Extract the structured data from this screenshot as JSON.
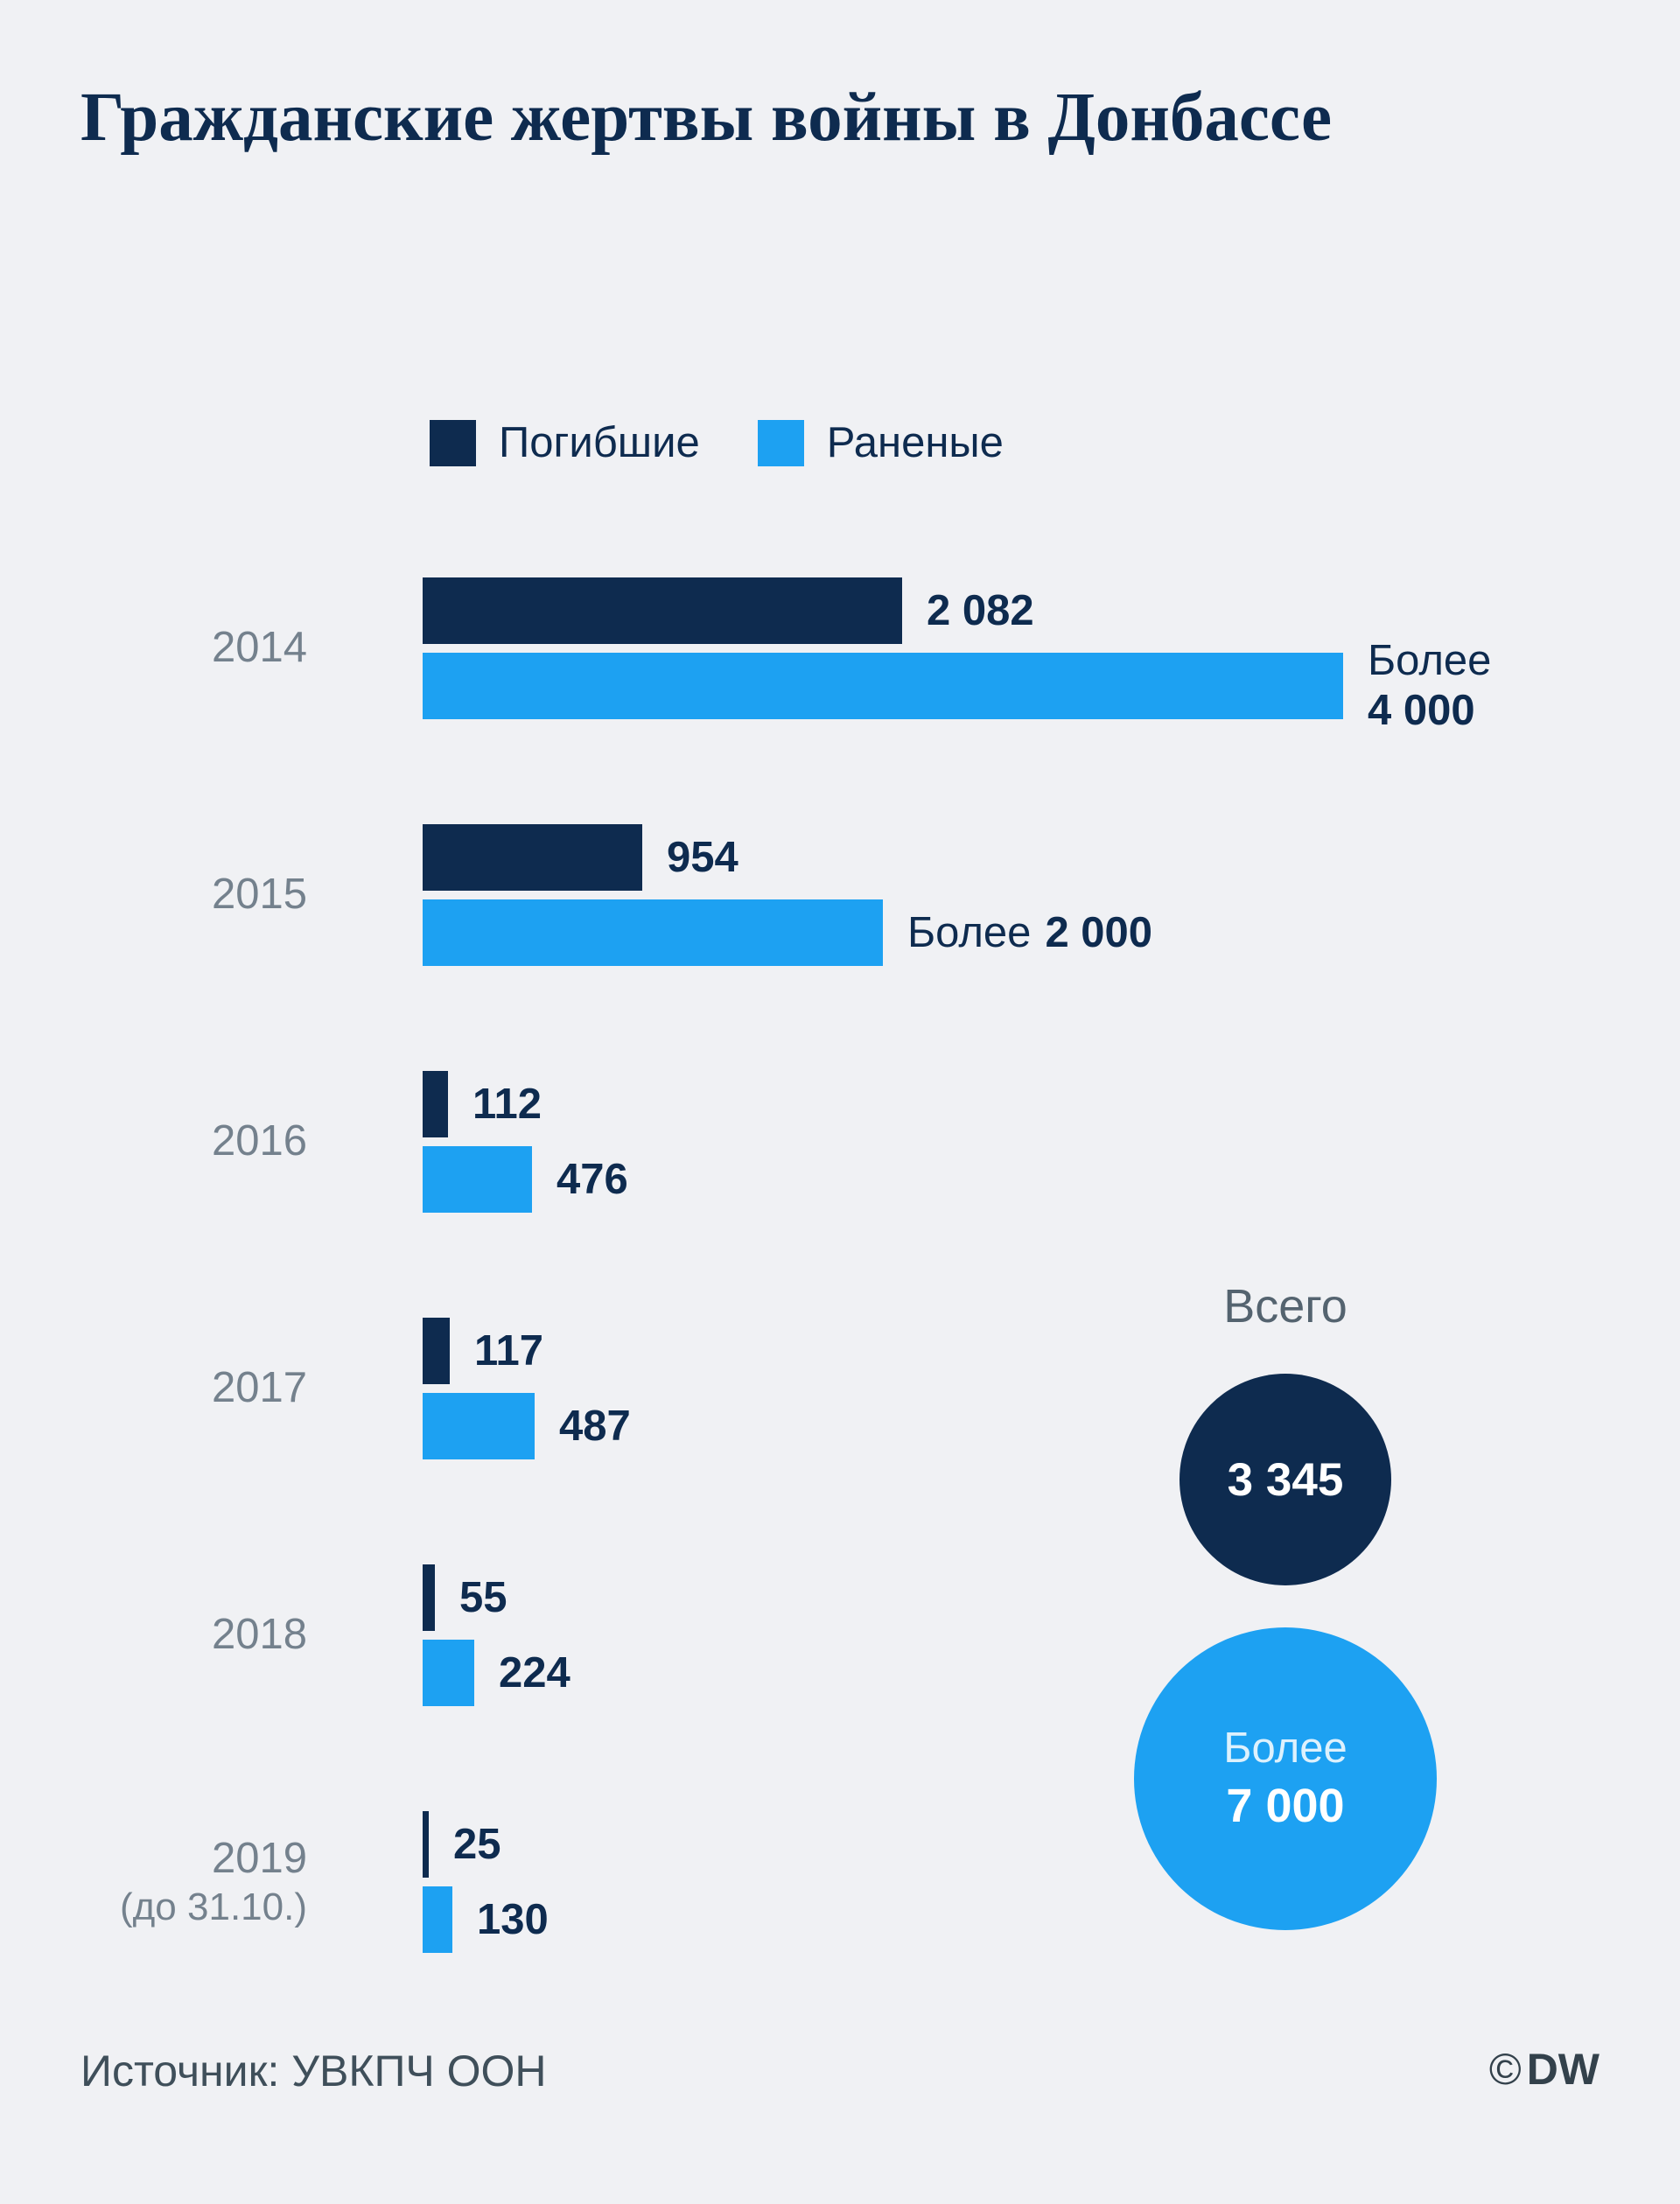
{
  "chart_data": {
    "type": "bar",
    "orientation": "horizontal",
    "title": "Гражданские жертвы войны в Донбассе",
    "x_max": 4000,
    "grid": false,
    "legend_position": "top",
    "series": [
      {
        "name": "Погибшие",
        "color": "#0e2b4f"
      },
      {
        "name": "Раненые",
        "color": "#1da1f2"
      }
    ],
    "rows": [
      {
        "year": "2014",
        "year_sub": "",
        "killed": {
          "value": 2082,
          "label": "2 082",
          "prefix": "",
          "two_line": false
        },
        "wounded": {
          "value": 4000,
          "label": "4 000",
          "prefix": "Более",
          "two_line": true
        }
      },
      {
        "year": "2015",
        "year_sub": "",
        "killed": {
          "value": 954,
          "label": "954",
          "prefix": "",
          "two_line": false
        },
        "wounded": {
          "value": 2000,
          "label": "2 000",
          "prefix": "Более",
          "two_line": false
        }
      },
      {
        "year": "2016",
        "year_sub": "",
        "killed": {
          "value": 112,
          "label": "112",
          "prefix": "",
          "two_line": false
        },
        "wounded": {
          "value": 476,
          "label": "476",
          "prefix": "",
          "two_line": false
        }
      },
      {
        "year": "2017",
        "year_sub": "",
        "killed": {
          "value": 117,
          "label": "117",
          "prefix": "",
          "two_line": false
        },
        "wounded": {
          "value": 487,
          "label": "487",
          "prefix": "",
          "two_line": false
        }
      },
      {
        "year": "2018",
        "year_sub": "",
        "killed": {
          "value": 55,
          "label": "55",
          "prefix": "",
          "two_line": false
        },
        "wounded": {
          "value": 224,
          "label": "224",
          "prefix": "",
          "two_line": false
        }
      },
      {
        "year": "2019",
        "year_sub": "(до 31.10.)",
        "killed": {
          "value": 25,
          "label": "25",
          "prefix": "",
          "two_line": false
        },
        "wounded": {
          "value": 130,
          "label": "130",
          "prefix": "",
          "two_line": false
        }
      }
    ]
  },
  "totals": {
    "title": "Всего",
    "killed_label": "3 345",
    "wounded_prefix": "Более",
    "wounded_label": "7 000"
  },
  "footer": {
    "source": "Источник: УВКПЧ ООН",
    "credit_symbol": "©",
    "credit": "DW"
  },
  "colors": {
    "background": "#f0f1f4",
    "navy": "#0e2b4f",
    "blue": "#1da1f2"
  }
}
